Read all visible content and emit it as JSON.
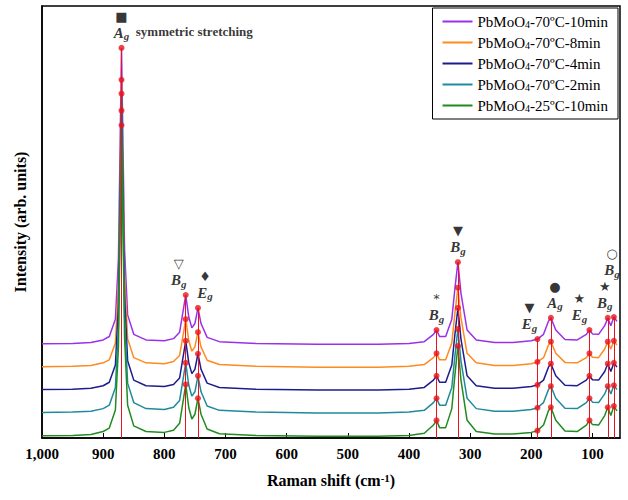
{
  "chart_data": {
    "type": "line",
    "x_label": "Raman shift (cm-1)",
    "y_label": "Intensity (arb. units)",
    "xlim": [
      1000,
      55
    ],
    "xticks": [
      1000,
      900,
      800,
      700,
      600,
      500,
      400,
      300,
      200,
      100
    ],
    "ylim": [
      0,
      100
    ],
    "tick_labels": "x",
    "grid": false,
    "legend": "upper right",
    "x": [
      1000,
      950,
      920,
      900,
      890,
      880,
      875,
      870,
      865,
      860,
      850,
      830,
      800,
      785,
      775,
      768,
      765,
      760,
      755,
      750,
      745,
      740,
      730,
      710,
      650,
      550,
      450,
      400,
      375,
      360,
      355,
      350,
      340,
      330,
      325,
      320,
      315,
      305,
      290,
      260,
      230,
      200,
      190,
      180,
      172,
      168,
      160,
      145,
      125,
      110,
      105,
      100,
      90,
      80,
      75,
      70,
      65,
      60
    ],
    "series": [
      {
        "name": "PbMoO4-70ºC-10min",
        "color": "#9b30e8",
        "values": [
          21.8,
          21.9,
          22.1,
          22.7,
          23.5,
          27.5,
          41.5,
          90.3,
          43.5,
          28.5,
          24.0,
          22.7,
          22.5,
          23.0,
          24.5,
          30.5,
          33.1,
          28.0,
          25.5,
          26.5,
          30.1,
          26.5,
          23.3,
          22.3,
          21.9,
          21.7,
          21.7,
          21.9,
          22.3,
          24.0,
          25.0,
          23.5,
          23.5,
          27.5,
          34.5,
          40.7,
          33.5,
          25.0,
          22.7,
          22.1,
          22.1,
          22.5,
          22.9,
          24.0,
          27.0,
          27.8,
          25.0,
          22.8,
          22.7,
          24.0,
          25.0,
          24.1,
          24.0,
          26.0,
          27.8,
          26.0,
          28.0,
          27.0
        ]
      },
      {
        "name": "PbMoO4-70ºC-8min",
        "color": "#ff8a1f",
        "values": [
          16.5,
          16.6,
          16.8,
          17.4,
          18.1,
          22.0,
          35.6,
          82.9,
          37.5,
          23.0,
          18.6,
          17.4,
          17.2,
          17.7,
          19.1,
          24.9,
          27.5,
          22.5,
          20.1,
          21.1,
          24.5,
          21.1,
          18.0,
          17.0,
          16.6,
          16.4,
          16.4,
          16.6,
          17.0,
          18.6,
          19.6,
          18.1,
          18.1,
          22.0,
          28.8,
          34.8,
          27.8,
          19.6,
          17.4,
          16.8,
          16.8,
          17.2,
          17.6,
          18.6,
          21.5,
          22.3,
          19.6,
          17.5,
          17.4,
          18.6,
          19.6,
          18.7,
          18.6,
          20.6,
          22.3,
          20.6,
          22.5,
          21.5
        ]
      },
      {
        "name": "PbMoO4-70ºC-4min",
        "color": "#1c1c8f",
        "values": [
          11.2,
          11.3,
          11.5,
          12.1,
          12.9,
          16.9,
          30.9,
          79.7,
          32.9,
          17.9,
          13.4,
          12.1,
          11.9,
          12.4,
          13.9,
          19.9,
          22.5,
          17.4,
          14.9,
          15.9,
          19.5,
          15.9,
          12.7,
          11.7,
          11.3,
          11.1,
          11.1,
          11.3,
          11.7,
          13.4,
          14.4,
          12.9,
          12.9,
          16.9,
          23.9,
          30.1,
          22.9,
          14.4,
          12.1,
          11.5,
          11.5,
          11.9,
          12.3,
          13.4,
          16.4,
          17.2,
          14.4,
          12.2,
          12.1,
          13.4,
          14.4,
          13.5,
          13.4,
          15.4,
          17.2,
          15.4,
          17.4,
          16.4
        ]
      },
      {
        "name": "PbMoO4-70ºC-2min",
        "color": "#1f8a9c",
        "values": [
          5.9,
          6.0,
          6.2,
          6.8,
          7.6,
          11.7,
          26.0,
          75.8,
          28.0,
          12.7,
          8.2,
          6.8,
          6.6,
          7.1,
          8.7,
          14.8,
          17.4,
          12.2,
          9.7,
          10.7,
          14.4,
          10.7,
          7.4,
          6.4,
          6.0,
          5.8,
          5.8,
          6.0,
          6.4,
          8.2,
          9.2,
          7.6,
          7.6,
          11.7,
          18.9,
          25.2,
          17.8,
          9.2,
          6.8,
          6.2,
          6.2,
          6.6,
          7.0,
          8.2,
          11.2,
          12.0,
          9.2,
          6.9,
          6.8,
          8.2,
          9.2,
          8.3,
          8.2,
          10.2,
          12.0,
          10.2,
          12.2,
          11.2
        ]
      },
      {
        "name": "PbMoO4-25ºC-10min",
        "color": "#1f8c1f",
        "values": [
          0.5,
          0.6,
          0.8,
          1.5,
          2.3,
          6.5,
          21.2,
          72.4,
          23.3,
          7.6,
          2.8,
          1.5,
          1.3,
          1.8,
          3.4,
          9.7,
          12.4,
          7.0,
          4.4,
          5.5,
          9.2,
          5.5,
          2.1,
          1.0,
          0.6,
          0.4,
          0.4,
          0.6,
          1.1,
          3.0,
          4.1,
          2.4,
          2.4,
          6.8,
          14.5,
          21.3,
          13.4,
          4.1,
          1.5,
          0.9,
          0.9,
          1.3,
          1.7,
          3.0,
          6.3,
          7.1,
          4.1,
          1.6,
          1.5,
          3.0,
          4.1,
          3.1,
          3.0,
          5.2,
          7.1,
          5.2,
          7.4,
          6.3
        ]
      }
    ],
    "peaks": [
      {
        "x": 870,
        "symbol": "■",
        "label": "Ag"
      },
      {
        "x": 765,
        "symbol": "▽",
        "label": "Bg"
      },
      {
        "x": 745,
        "symbol": "♦",
        "label": "Eg"
      },
      {
        "x": 355,
        "symbol": "*",
        "label": "Bg"
      },
      {
        "x": 320,
        "symbol": "▼",
        "label": "Bg"
      },
      {
        "x": 190,
        "symbol": "▼",
        "label": "Eg"
      },
      {
        "x": 168,
        "symbol": "●",
        "label": "Ag"
      },
      {
        "x": 105,
        "symbol": "★",
        "label": "Eg"
      },
      {
        "x": 75,
        "symbol": "★",
        "label": "Bg"
      },
      {
        "x": 65,
        "symbol": "○",
        "label": "Bg"
      }
    ],
    "annotations": [
      {
        "text": "symmetric stretching",
        "x": 850,
        "y": 94
      }
    ]
  }
}
